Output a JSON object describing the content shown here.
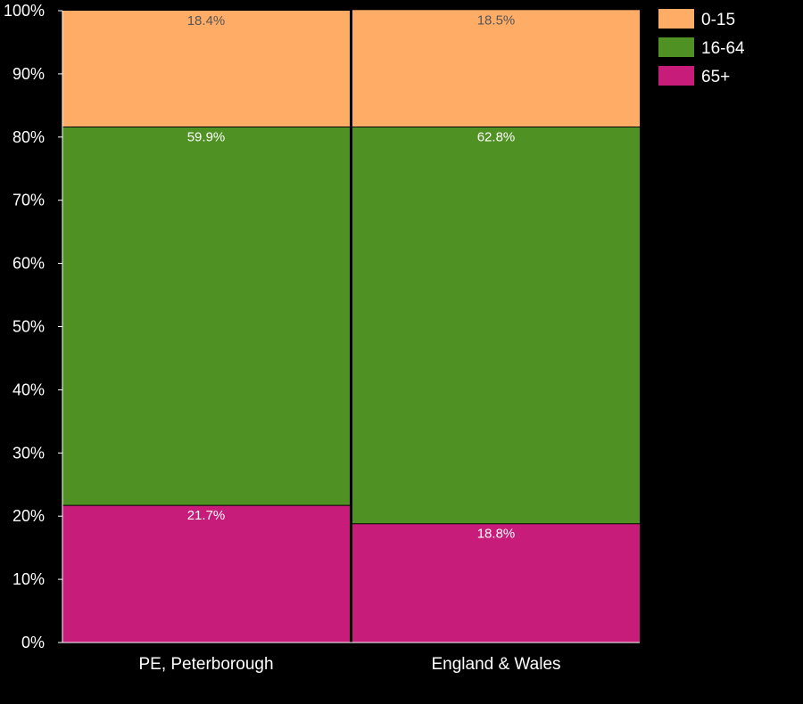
{
  "chart_data": {
    "type": "bar",
    "stacked": true,
    "normalized": true,
    "categories": [
      "PE, Peterborough",
      "England & Wales"
    ],
    "series": [
      {
        "name": "65+",
        "values": [
          21.7,
          18.8
        ],
        "labels": [
          "21.7%",
          "18.8%"
        ],
        "color": "#c71c7a",
        "label_color": "#ffffff"
      },
      {
        "name": "16-64",
        "values": [
          59.9,
          62.8
        ],
        "labels": [
          "59.9%",
          "62.8%"
        ],
        "color": "#4f9122",
        "label_color": "#ffffff"
      },
      {
        "name": "0-15",
        "values": [
          18.4,
          18.5
        ],
        "labels": [
          "18.4%",
          "18.5%"
        ],
        "color": "#ffad66",
        "label_color": "#555555"
      }
    ],
    "legend_order": [
      "0-15",
      "16-64",
      "65+"
    ],
    "ylim": [
      0,
      100
    ],
    "yticks": [
      0,
      10,
      20,
      30,
      40,
      50,
      60,
      70,
      80,
      90,
      100
    ],
    "ytick_labels": [
      "0%",
      "10%",
      "20%",
      "30%",
      "40%",
      "50%",
      "60%",
      "70%",
      "80%",
      "90%",
      "100%"
    ],
    "legend_position": "top-right",
    "grid": false,
    "background": "#000000",
    "axis_color": "#ffffff"
  }
}
